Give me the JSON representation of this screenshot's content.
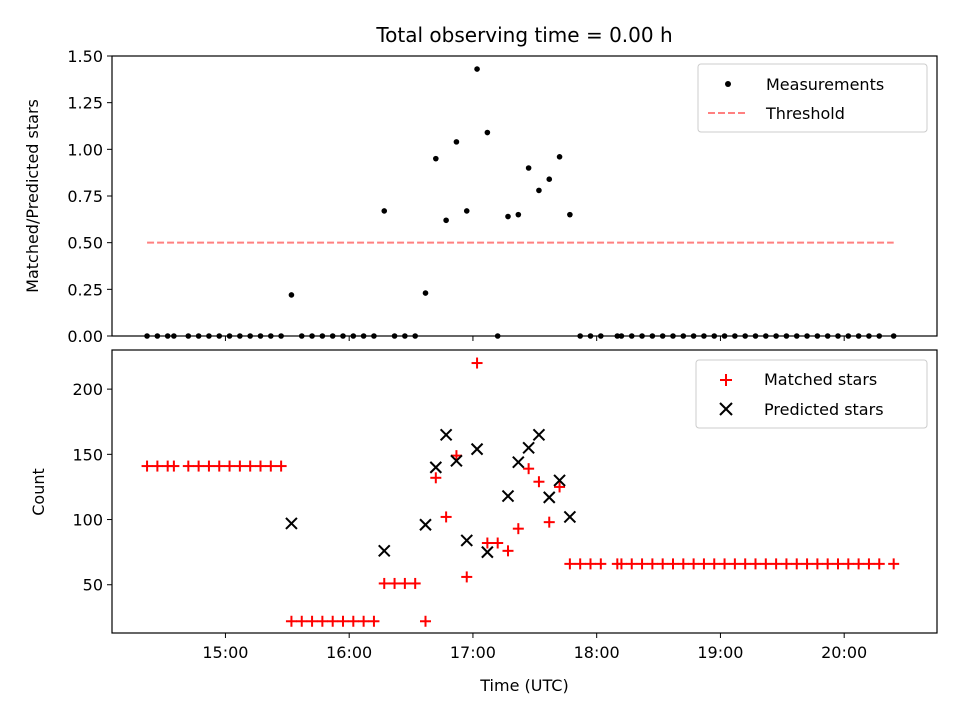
{
  "chart_data": [
    {
      "type": "scatter",
      "title": "Total observing time = 0.00 h",
      "xlabel": "",
      "ylabel": "Matched/Predicted stars",
      "ylim": [
        0,
        1.5
      ],
      "yticks": [
        "0.00",
        "0.25",
        "0.50",
        "0.75",
        "1.00",
        "1.25",
        "1.50"
      ],
      "legend": {
        "placement": "top-right",
        "entries": [
          "Measurements",
          "Threshold"
        ]
      },
      "colors": {
        "measurements": "#000000",
        "threshold": "#ff8080"
      },
      "threshold": {
        "value": 0.5,
        "x_start": "14:22",
        "x_end": "20:24"
      },
      "series": [
        {
          "name": "Measurements",
          "x": [
            "14:22",
            "14:27",
            "14:32",
            "14:35",
            "14:42",
            "14:47",
            "14:52",
            "14:57",
            "15:02",
            "15:07",
            "15:12",
            "15:17",
            "15:22",
            "15:27",
            "15:32",
            "15:37",
            "15:42",
            "15:47",
            "15:52",
            "15:57",
            "16:02",
            "16:07",
            "16:12",
            "16:17",
            "16:22",
            "16:27",
            "16:32",
            "16:37",
            "16:42",
            "16:47",
            "16:52",
            "16:57",
            "17:02",
            "17:07",
            "17:12",
            "17:17",
            "17:22",
            "17:27",
            "17:32",
            "17:37",
            "17:42",
            "17:47",
            "17:52",
            "17:57",
            "18:02",
            "18:10",
            "18:12",
            "18:17",
            "18:22",
            "18:27",
            "18:32",
            "18:37",
            "18:42",
            "18:47",
            "18:52",
            "18:57",
            "19:02",
            "19:07",
            "19:12",
            "19:17",
            "19:22",
            "19:27",
            "19:32",
            "19:37",
            "19:42",
            "19:47",
            "19:52",
            "19:57",
            "20:02",
            "20:07",
            "20:12",
            "20:17",
            "20:24"
          ],
          "y": [
            0,
            0,
            0,
            0,
            0,
            0,
            0,
            0,
            0,
            0,
            0,
            0,
            0,
            0,
            0.22,
            0,
            0,
            0,
            0,
            0,
            0,
            0,
            0,
            0.67,
            0,
            0,
            0,
            0.23,
            0.95,
            0.62,
            1.04,
            0.67,
            1.43,
            1.09,
            0,
            0.64,
            0.65,
            0.9,
            0.78,
            0.84,
            0.96,
            0.65,
            0,
            0,
            0,
            0,
            0,
            0,
            0,
            0,
            0,
            0,
            0,
            0,
            0,
            0,
            0,
            0,
            0,
            0,
            0,
            0,
            0,
            0,
            0,
            0,
            0,
            0,
            0,
            0,
            0,
            0,
            0
          ]
        }
      ]
    },
    {
      "type": "scatter",
      "title": "",
      "xlabel": "Time (UTC)",
      "ylabel": "Count",
      "ylim": [
        13,
        230
      ],
      "yticks": [
        "50",
        "100",
        "150",
        "200"
      ],
      "xticks": [
        "15:00",
        "16:00",
        "17:00",
        "18:00",
        "19:00",
        "20:00"
      ],
      "xlim": [
        "14:05",
        "20:45"
      ],
      "legend": {
        "placement": "top-right",
        "entries": [
          "Matched stars",
          "Predicted stars"
        ]
      },
      "colors": {
        "matched": "#ff0000",
        "predicted": "#000000"
      },
      "series": [
        {
          "name": "Matched stars",
          "x": [
            "14:22",
            "14:27",
            "14:32",
            "14:35",
            "14:42",
            "14:47",
            "14:52",
            "14:57",
            "15:02",
            "15:07",
            "15:12",
            "15:17",
            "15:22",
            "15:27",
            "15:32",
            "15:37",
            "15:42",
            "15:47",
            "15:52",
            "15:57",
            "16:02",
            "16:07",
            "16:12",
            "16:17",
            "16:22",
            "16:27",
            "16:32",
            "16:37",
            "16:42",
            "16:47",
            "16:52",
            "16:57",
            "17:02",
            "17:07",
            "17:12",
            "17:17",
            "17:22",
            "17:27",
            "17:32",
            "17:37",
            "17:42",
            "17:47",
            "17:52",
            "17:57",
            "18:02",
            "18:10",
            "18:12",
            "18:17",
            "18:22",
            "18:27",
            "18:32",
            "18:37",
            "18:42",
            "18:47",
            "18:52",
            "18:57",
            "19:02",
            "19:07",
            "19:12",
            "19:17",
            "19:22",
            "19:27",
            "19:32",
            "19:37",
            "19:42",
            "19:47",
            "19:52",
            "19:57",
            "20:02",
            "20:07",
            "20:12",
            "20:17",
            "20:24"
          ],
          "y": [
            141,
            141,
            141,
            141,
            141,
            141,
            141,
            141,
            141,
            141,
            141,
            141,
            141,
            141,
            22,
            22,
            22,
            22,
            22,
            22,
            22,
            22,
            22,
            51,
            51,
            51,
            51,
            22,
            132,
            102,
            149,
            56,
            220,
            82,
            82,
            76,
            93,
            139,
            129,
            98,
            125,
            66,
            66,
            66,
            66,
            66,
            66,
            66,
            66,
            66,
            66,
            66,
            66,
            66,
            66,
            66,
            66,
            66,
            66,
            66,
            66,
            66,
            66,
            66,
            66,
            66,
            66,
            66,
            66,
            66,
            66,
            66,
            66
          ]
        },
        {
          "name": "Predicted stars",
          "x": [
            "15:32",
            "16:17",
            "16:37",
            "16:42",
            "16:47",
            "16:52",
            "16:57",
            "17:02",
            "17:07",
            "17:17",
            "17:22",
            "17:27",
            "17:32",
            "17:37",
            "17:42",
            "17:47"
          ],
          "y": [
            97,
            76,
            96,
            140,
            165,
            145,
            84,
            154,
            75,
            118,
            144,
            155,
            165,
            117,
            130,
            102
          ]
        }
      ]
    }
  ]
}
